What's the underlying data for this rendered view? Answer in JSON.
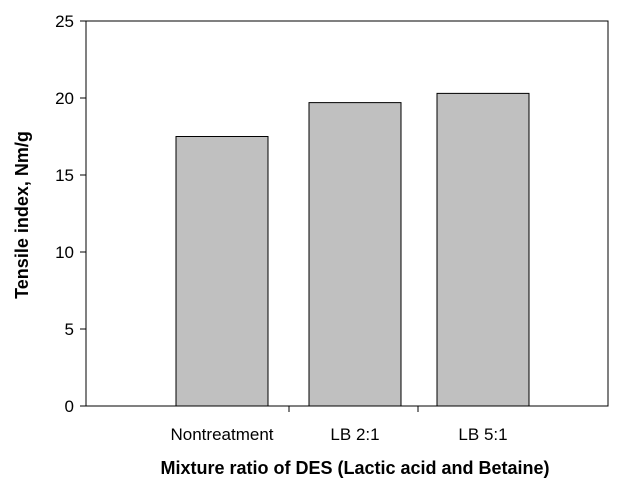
{
  "chart_data": {
    "type": "bar",
    "categories": [
      "Nontreatment",
      "LB 2:1",
      "LB 5:1"
    ],
    "values": [
      17.5,
      19.7,
      20.3
    ],
    "xlabel": "Mixture ratio of DES (Lactic acid and Betaine)",
    "ylabel": "Tensile index, Nm/g",
    "ylim": [
      0,
      25
    ],
    "yticks": [
      0,
      5,
      10,
      15,
      20,
      25
    ],
    "grid": false,
    "legend": "none",
    "bar_color": "#c0c0c0",
    "bar_edge_color": "#000000"
  }
}
